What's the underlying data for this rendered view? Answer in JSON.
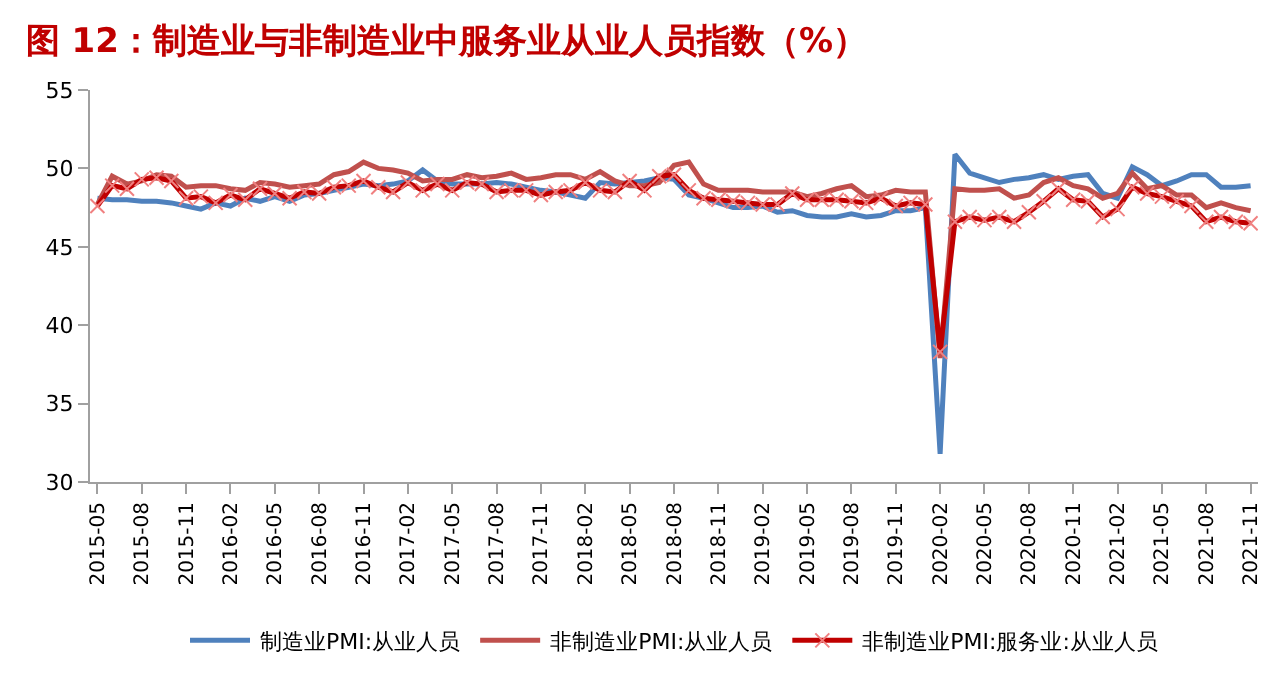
{
  "chart_data": {
    "type": "line",
    "title": "图 12：制造业与非制造业中服务业从业人员指数（%）",
    "categories": [
      "2015-05",
      null,
      null,
      "2015-08",
      null,
      null,
      "2015-11",
      null,
      null,
      "2016-02",
      null,
      null,
      "2016-05",
      null,
      null,
      "2016-08",
      null,
      null,
      "2016-11",
      null,
      null,
      "2017-02",
      null,
      null,
      "2017-05",
      null,
      null,
      "2017-08",
      null,
      null,
      "2017-11",
      null,
      null,
      "2018-02",
      null,
      null,
      "2018-05",
      null,
      null,
      "2018-08",
      null,
      null,
      "2018-11",
      null,
      null,
      "2019-02",
      null,
      null,
      "2019-05",
      null,
      null,
      "2019-08",
      null,
      null,
      "2019-11",
      null,
      null,
      "2020-02",
      null,
      null,
      "2020-05",
      null,
      null,
      "2020-08",
      null,
      null,
      "2020-11",
      null,
      null,
      "2021-02",
      null,
      null,
      "2021-05",
      null,
      null,
      "2021-08",
      null,
      null,
      "2021-11"
    ],
    "series": [
      {
        "name": "制造业PMI:从业人员",
        "color": "#4f81bd",
        "marker": "none",
        "values": [
          48.1,
          48.0,
          48.0,
          47.9,
          47.9,
          47.8,
          47.6,
          47.4,
          47.8,
          47.6,
          48.1,
          47.9,
          48.2,
          47.9,
          48.3,
          48.4,
          48.6,
          48.8,
          49.0,
          48.9,
          49.0,
          49.2,
          49.9,
          49.2,
          49.0,
          49.0,
          49.0,
          49.1,
          49.0,
          48.8,
          48.6,
          48.5,
          48.3,
          48.1,
          49.1,
          49.0,
          49.1,
          49.2,
          49.4,
          49.3,
          48.3,
          48.1,
          47.8,
          47.5,
          47.5,
          47.6,
          47.2,
          47.3,
          47.0,
          46.9,
          46.9,
          47.1,
          46.9,
          47.0,
          47.3,
          47.3,
          47.5,
          31.8,
          50.9,
          49.7,
          49.4,
          49.1,
          49.3,
          49.4,
          49.6,
          49.3,
          49.5,
          49.6,
          48.4,
          48.1,
          50.1,
          49.6,
          48.9,
          49.2,
          49.6,
          49.6,
          48.8,
          48.8,
          48.9
        ]
      },
      {
        "name": "非制造业PMI:从业人员",
        "color": "#c0504d",
        "marker": "none",
        "values": [
          47.7,
          49.5,
          49.0,
          49.2,
          49.6,
          49.5,
          48.8,
          48.9,
          48.9,
          48.7,
          48.6,
          49.1,
          49.0,
          48.8,
          48.9,
          49.0,
          49.6,
          49.8,
          50.4,
          50.0,
          49.9,
          49.7,
          49.2,
          49.3,
          49.3,
          49.6,
          49.4,
          49.5,
          49.7,
          49.3,
          49.4,
          49.6,
          49.6,
          49.3,
          49.8,
          49.2,
          48.9,
          48.9,
          49.1,
          50.2,
          50.4,
          49.0,
          48.6,
          48.6,
          48.6,
          48.5,
          48.5,
          48.5,
          48.2,
          48.4,
          48.7,
          48.9,
          48.2,
          48.3,
          48.6,
          48.5,
          48.5,
          37.9,
          48.7,
          48.6,
          48.6,
          48.7,
          48.1,
          48.3,
          49.1,
          49.4,
          48.9,
          48.7,
          48.1,
          48.4,
          49.7,
          48.7,
          48.9,
          48.3,
          48.3,
          47.5,
          47.8,
          47.5,
          47.3
        ]
      },
      {
        "name": "非制造业PMI:服务业:从业人员",
        "color": "#c00000",
        "marker": "cross",
        "values": [
          47.6,
          48.9,
          48.7,
          49.3,
          49.4,
          49.2,
          48.1,
          48.2,
          47.8,
          48.3,
          48.0,
          48.7,
          48.4,
          48.1,
          48.5,
          48.4,
          48.8,
          48.9,
          49.2,
          48.8,
          48.5,
          49.1,
          48.6,
          49.0,
          48.6,
          49.1,
          49.0,
          48.5,
          48.6,
          48.6,
          48.3,
          48.5,
          48.6,
          49.1,
          48.6,
          48.5,
          49.2,
          48.6,
          49.5,
          49.6,
          48.6,
          48.1,
          48.0,
          47.9,
          47.8,
          47.7,
          47.7,
          48.4,
          48.0,
          48.0,
          48.0,
          47.9,
          47.8,
          48.1,
          47.6,
          47.8,
          47.7,
          38.3,
          46.6,
          46.9,
          46.7,
          46.9,
          46.6,
          47.2,
          47.9,
          48.7,
          48.0,
          47.9,
          46.9,
          47.4,
          48.8,
          48.4,
          48.2,
          47.9,
          47.6,
          46.6,
          46.9,
          46.6,
          46.5
        ]
      }
    ],
    "ylim": [
      30,
      55
    ],
    "yticks": [
      30,
      35,
      40,
      45,
      50,
      55
    ],
    "legend": "bottom"
  }
}
